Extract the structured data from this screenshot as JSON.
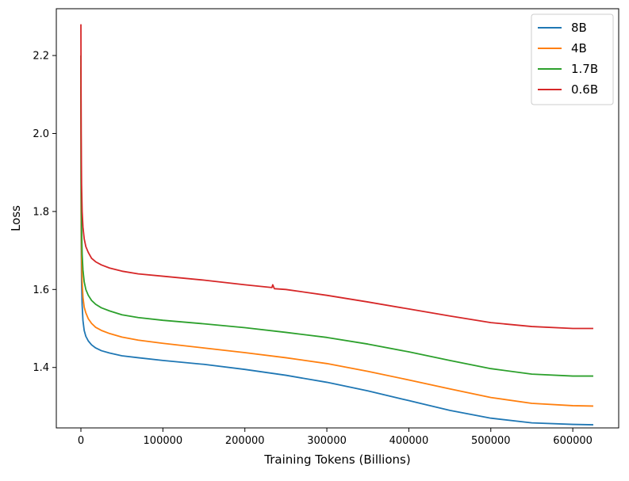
{
  "chart_data": {
    "type": "line",
    "title": "",
    "xlabel": "Training Tokens (Billions)",
    "ylabel": "Loss",
    "xlim": [
      -30000,
      656000
    ],
    "ylim": [
      1.245,
      2.32
    ],
    "xticks": [
      0,
      100000,
      200000,
      300000,
      400000,
      500000,
      600000
    ],
    "xtick_labels": [
      "0",
      "100000",
      "200000",
      "300000",
      "400000",
      "500000",
      "600000"
    ],
    "yticks": [
      1.4,
      1.6,
      1.8,
      2.0,
      2.2
    ],
    "ytick_labels": [
      "1.4",
      "1.6",
      "1.8",
      "2.0",
      "2.2"
    ],
    "grid": false,
    "legend_position": "top-right",
    "series": [
      {
        "name": "8B",
        "color": "#1f77b4",
        "x": [
          0,
          300,
          800,
          1500,
          2500,
          4000,
          6000,
          9000,
          13000,
          18000,
          25000,
          35000,
          50000,
          70000,
          100000,
          150000,
          200000,
          250000,
          300000,
          350000,
          400000,
          450000,
          500000,
          550000,
          600000,
          625000
        ],
        "y": [
          2.12,
          1.75,
          1.62,
          1.56,
          1.52,
          1.495,
          1.48,
          1.468,
          1.458,
          1.45,
          1.443,
          1.437,
          1.43,
          1.425,
          1.418,
          1.408,
          1.395,
          1.38,
          1.362,
          1.34,
          1.315,
          1.29,
          1.27,
          1.258,
          1.254,
          1.253
        ]
      },
      {
        "name": "4B",
        "color": "#ff7f0e",
        "x": [
          0,
          300,
          800,
          1500,
          2500,
          4000,
          6000,
          9000,
          13000,
          18000,
          25000,
          35000,
          50000,
          70000,
          100000,
          150000,
          200000,
          250000,
          300000,
          350000,
          400000,
          450000,
          500000,
          550000,
          600000,
          625000
        ],
        "y": [
          2.17,
          1.8,
          1.68,
          1.62,
          1.58,
          1.555,
          1.54,
          1.525,
          1.513,
          1.503,
          1.495,
          1.487,
          1.478,
          1.47,
          1.462,
          1.45,
          1.438,
          1.425,
          1.41,
          1.39,
          1.368,
          1.345,
          1.323,
          1.308,
          1.302,
          1.301
        ]
      },
      {
        "name": "1.7B",
        "color": "#2ca02c",
        "x": [
          0,
          300,
          800,
          1500,
          2500,
          4000,
          6000,
          9000,
          13000,
          18000,
          25000,
          35000,
          50000,
          70000,
          100000,
          150000,
          200000,
          250000,
          300000,
          350000,
          400000,
          450000,
          500000,
          550000,
          600000,
          625000
        ],
        "y": [
          2.2,
          1.88,
          1.76,
          1.69,
          1.65,
          1.62,
          1.6,
          1.585,
          1.572,
          1.562,
          1.553,
          1.545,
          1.535,
          1.528,
          1.521,
          1.512,
          1.502,
          1.49,
          1.477,
          1.46,
          1.44,
          1.418,
          1.397,
          1.383,
          1.378,
          1.378
        ]
      },
      {
        "name": "0.6B",
        "color": "#d62728",
        "x": [
          0,
          300,
          800,
          1500,
          2500,
          4000,
          6000,
          9000,
          13000,
          18000,
          25000,
          35000,
          50000,
          70000,
          100000,
          150000,
          200000,
          233000,
          234000,
          236000,
          250000,
          300000,
          350000,
          400000,
          450000,
          500000,
          550000,
          600000,
          625000
        ],
        "y": [
          2.28,
          2.0,
          1.87,
          1.8,
          1.76,
          1.73,
          1.71,
          1.695,
          1.68,
          1.671,
          1.663,
          1.655,
          1.647,
          1.64,
          1.634,
          1.624,
          1.612,
          1.605,
          1.612,
          1.602,
          1.6,
          1.585,
          1.568,
          1.55,
          1.532,
          1.515,
          1.505,
          1.5,
          1.5
        ]
      }
    ]
  }
}
